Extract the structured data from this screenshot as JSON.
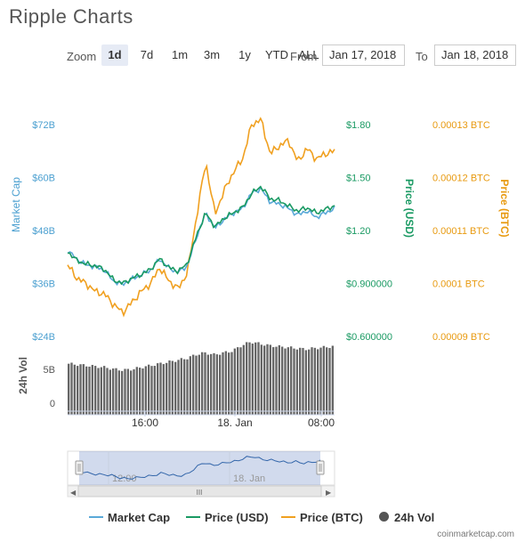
{
  "page": {
    "title": "Ripple Charts"
  },
  "toolbar": {
    "zoom_label": "Zoom",
    "buttons": [
      "1d",
      "7d",
      "1m",
      "3m",
      "1y",
      "YTD",
      "ALL"
    ],
    "active": "1d",
    "from_label": "From",
    "from_value": "Jan 17, 2018",
    "to_label": "To",
    "to_value": "Jan 18, 2018"
  },
  "chart_data": {
    "type": "line",
    "x_ticks": [
      "16:00",
      "18. Jan",
      "08:00"
    ],
    "axes": {
      "market_cap": {
        "label": "Market Cap",
        "ticks": [
          "$72B",
          "$60B",
          "$48B",
          "$36B",
          "$24B"
        ],
        "ylim": [
          24,
          72
        ],
        "unit": "B USD"
      },
      "price_usd": {
        "label": "Price (USD)",
        "ticks": [
          "$1.80",
          "$1.50",
          "$1.20",
          "$0.900000",
          "$0.600000"
        ],
        "ylim": [
          0.6,
          1.8
        ]
      },
      "price_btc": {
        "label": "Price (BTC)",
        "ticks": [
          "0.00013 BTC",
          "0.00012 BTC",
          "0.00011 BTC",
          "0.0001 BTC",
          "0.00009 BTC"
        ],
        "ylim": [
          9e-05,
          0.00013
        ]
      },
      "volume": {
        "label": "24h Vol",
        "ticks": [
          "5B",
          "0"
        ],
        "ylim": [
          0,
          8.5
        ]
      }
    },
    "series": [
      {
        "name": "Market Cap",
        "color": "#5aa9d8",
        "axis": "market_cap",
        "values": [
          43.5,
          41.5,
          40.2,
          39.8,
          39.0,
          36.5,
          35.8,
          37.0,
          38.0,
          39.0,
          41.5,
          39.5,
          38.5,
          40.0,
          46.5,
          52.0,
          48.5,
          50.5,
          52.0,
          53.0,
          56.5,
          57.5,
          54.5,
          54.0,
          53.0,
          51.5,
          52.5,
          51.0,
          52.0,
          53.0
        ]
      },
      {
        "name": "Price (USD)",
        "color": "#1a9a63",
        "axis": "price_usd",
        "values": [
          1.08,
          1.03,
          1.01,
          1.0,
          0.98,
          0.92,
          0.9,
          0.93,
          0.95,
          0.98,
          1.04,
          0.99,
          0.97,
          1.01,
          1.17,
          1.3,
          1.22,
          1.27,
          1.3,
          1.33,
          1.41,
          1.45,
          1.38,
          1.37,
          1.34,
          1.31,
          1.33,
          1.3,
          1.32,
          1.34
        ]
      },
      {
        "name": "Price (BTC)",
        "color": "#f0a020",
        "axis": "price_btc",
        "values": [
          0.0001035,
          0.000101,
          0.0001,
          9.85e-05,
          9.8e-05,
          9.6e-05,
          9.45e-05,
          9.65e-05,
          9.85e-05,
          0.0001,
          0.000103,
          0.0001005,
          9.9e-05,
          0.000102,
          0.0001125,
          0.000123,
          0.000113,
          0.0001175,
          0.000121,
          0.0001235,
          0.00013,
          0.000131,
          0.0001245,
          0.000126,
          0.000127,
          0.000123,
          0.0001255,
          0.0001235,
          0.0001245,
          0.000125
        ]
      },
      {
        "name": "24h Vol",
        "color": "#555555",
        "axis": "volume",
        "type": "column",
        "values": [
          5.6,
          5.5,
          5.4,
          5.3,
          5.2,
          5.0,
          4.9,
          5.0,
          5.2,
          5.4,
          5.6,
          5.8,
          6.0,
          6.2,
          6.6,
          6.8,
          6.6,
          6.8,
          7.0,
          7.6,
          8.0,
          7.8,
          7.6,
          7.5,
          7.4,
          7.3,
          7.2,
          7.3,
          7.4,
          7.5
        ]
      }
    ],
    "navigator": {
      "x_ticks": [
        "12:00",
        "18. Jan"
      ]
    },
    "legend_position": "bottom",
    "grid": false
  },
  "legend": {
    "items": [
      {
        "name": "Market Cap",
        "color": "#5aa9d8",
        "kind": "line"
      },
      {
        "name": "Price (USD)",
        "color": "#1a9a63",
        "kind": "line"
      },
      {
        "name": "Price (BTC)",
        "color": "#f0a020",
        "kind": "line"
      },
      {
        "name": "24h Vol",
        "color": "#555555",
        "kind": "dot"
      }
    ]
  },
  "credit": "coinmarketcap.com",
  "scrollbar": {
    "left_arrow": "◀",
    "right_arrow": "▶",
    "grip": "III"
  }
}
